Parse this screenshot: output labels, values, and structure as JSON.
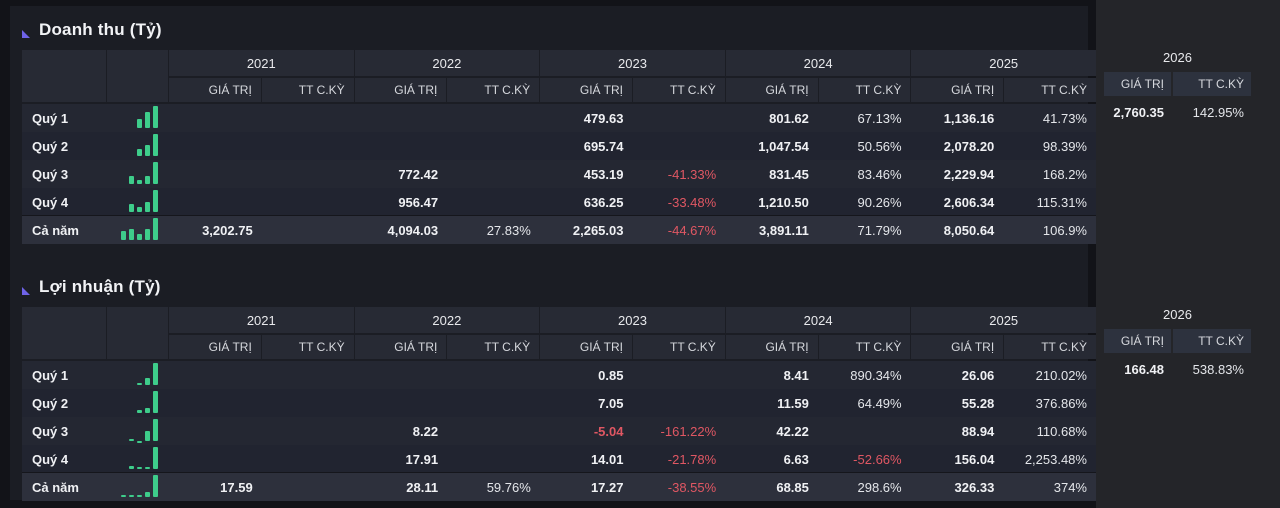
{
  "colors": {
    "background": "#121318",
    "content_background": "#1b1d24",
    "panel_background": "#242529",
    "header_cell": "#272a34",
    "row_odd": "#242732",
    "row_even": "#212430",
    "row_total": "#2d303c",
    "accent_triangle": "#6f63e8",
    "bar_green": "#3ecd8b",
    "negative_text": "#e05763",
    "text_primary": "#f0f1f4"
  },
  "col_headers": {
    "value": "GIÁ TRỊ",
    "growth": "TT C.KỲ"
  },
  "tables": [
    {
      "title": "Doanh thu (Tỷ)",
      "years": [
        "2021",
        "2022",
        "2023",
        "2024",
        "2025"
      ],
      "forecast_year": "2026",
      "rows": [
        {
          "label": "Quý 1",
          "total": false,
          "values": [
            null,
            null,
            "479.63",
            "801.62",
            "1,136.16"
          ],
          "growths": [
            null,
            null,
            null,
            "67.13%",
            "41.73%"
          ],
          "forecast": {
            "value": "2,760.35",
            "growth": "142.95%"
          },
          "spark": [
            479.63,
            801.62,
            1136.16
          ]
        },
        {
          "label": "Quý 2",
          "total": false,
          "values": [
            null,
            null,
            "695.74",
            "1,047.54",
            "2,078.20"
          ],
          "growths": [
            null,
            null,
            null,
            "50.56%",
            "98.39%"
          ],
          "forecast": null,
          "spark": [
            695.74,
            1047.54,
            2078.2
          ]
        },
        {
          "label": "Quý 3",
          "total": false,
          "values": [
            null,
            "772.42",
            "453.19",
            "831.45",
            "2,229.94"
          ],
          "growths": [
            null,
            null,
            "-41.33%",
            "83.46%",
            "168.2%"
          ],
          "forecast": null,
          "spark": [
            772.42,
            453.19,
            831.45,
            2229.94
          ]
        },
        {
          "label": "Quý 4",
          "total": false,
          "values": [
            null,
            "956.47",
            "636.25",
            "1,210.50",
            "2,606.34"
          ],
          "growths": [
            null,
            null,
            "-33.48%",
            "90.26%",
            "115.31%"
          ],
          "forecast": null,
          "spark": [
            956.47,
            636.25,
            1210.5,
            2606.34
          ]
        },
        {
          "label": "Cả năm",
          "total": true,
          "values": [
            "3,202.75",
            "4,094.03",
            "2,265.03",
            "3,891.11",
            "8,050.64"
          ],
          "growths": [
            null,
            "27.83%",
            "-44.67%",
            "71.79%",
            "106.9%"
          ],
          "forecast": null,
          "spark": [
            3202.75,
            4094.03,
            2265.03,
            3891.11,
            8050.64
          ]
        }
      ]
    },
    {
      "title": "Lợi nhuận (Tỷ)",
      "years": [
        "2021",
        "2022",
        "2023",
        "2024",
        "2025"
      ],
      "forecast_year": "2026",
      "rows": [
        {
          "label": "Quý 1",
          "total": false,
          "values": [
            null,
            null,
            "0.85",
            "8.41",
            "26.06"
          ],
          "growths": [
            null,
            null,
            null,
            "890.34%",
            "210.02%"
          ],
          "forecast": {
            "value": "166.48",
            "growth": "538.83%"
          },
          "spark": [
            0.85,
            8.41,
            26.06
          ]
        },
        {
          "label": "Quý 2",
          "total": false,
          "values": [
            null,
            null,
            "7.05",
            "11.59",
            "55.28"
          ],
          "growths": [
            null,
            null,
            null,
            "64.49%",
            "376.86%"
          ],
          "forecast": null,
          "spark": [
            7.05,
            11.59,
            55.28
          ]
        },
        {
          "label": "Quý 3",
          "total": false,
          "values": [
            null,
            "8.22",
            "-5.04",
            "42.22",
            "88.94"
          ],
          "growths": [
            null,
            null,
            "-161.22%",
            null,
            "110.68%"
          ],
          "forecast": null,
          "spark": [
            8.22,
            -5.04,
            42.22,
            88.94
          ]
        },
        {
          "label": "Quý 4",
          "total": false,
          "values": [
            null,
            "17.91",
            "14.01",
            "6.63",
            "156.04"
          ],
          "growths": [
            null,
            null,
            "-21.78%",
            "-52.66%",
            "2,253.48%"
          ],
          "forecast": null,
          "spark": [
            17.91,
            14.01,
            6.63,
            156.04
          ]
        },
        {
          "label": "Cả năm",
          "total": true,
          "values": [
            "17.59",
            "28.11",
            "17.27",
            "68.85",
            "326.33"
          ],
          "growths": [
            null,
            "59.76%",
            "-38.55%",
            "298.6%",
            "374%"
          ],
          "forecast": null,
          "spark": [
            17.59,
            28.11,
            17.27,
            68.85,
            326.33
          ]
        }
      ]
    }
  ]
}
